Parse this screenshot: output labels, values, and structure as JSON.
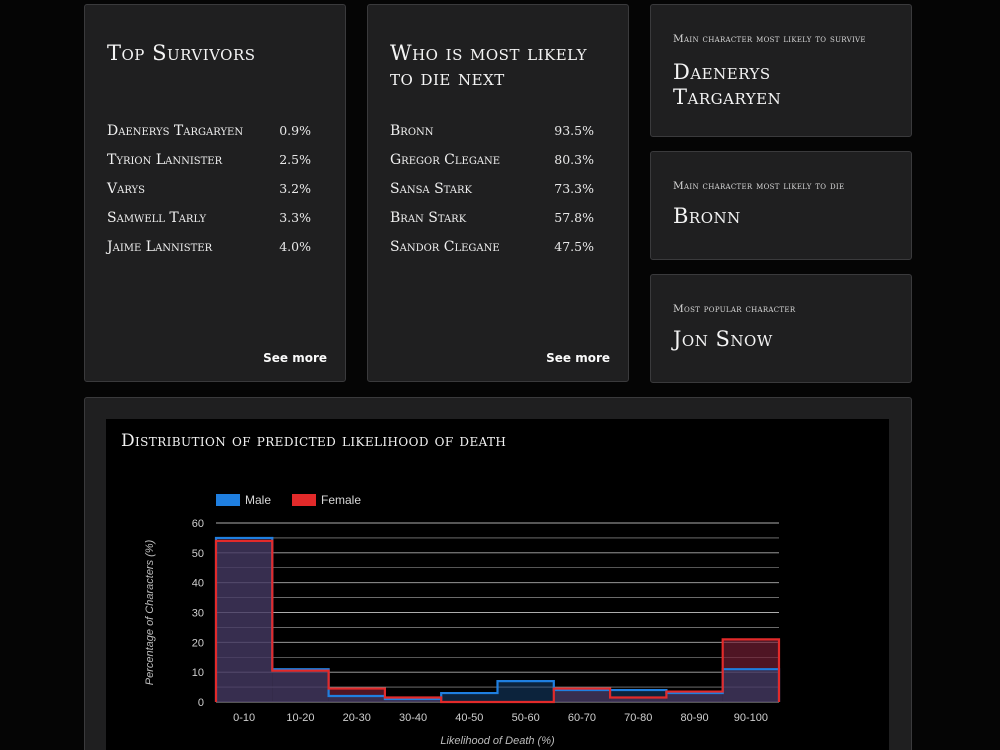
{
  "top_survivors": {
    "title": "Top Survivors",
    "items": [
      {
        "name": "Daenerys Targaryen",
        "pct": "0.9%"
      },
      {
        "name": "Tyrion Lannister",
        "pct": "2.5%"
      },
      {
        "name": "Varys",
        "pct": "3.2%"
      },
      {
        "name": "Samwell Tarly",
        "pct": "3.3%"
      },
      {
        "name": "Jaime Lannister",
        "pct": "4.0%"
      }
    ],
    "see_more": "See more"
  },
  "likely_to_die": {
    "title": "Who is most likely to die next",
    "items": [
      {
        "name": "Bronn",
        "pct": "93.5%"
      },
      {
        "name": "Gregor Clegane",
        "pct": "80.3%"
      },
      {
        "name": "Sansa Stark",
        "pct": "73.3%"
      },
      {
        "name": "Bran Stark",
        "pct": "57.8%"
      },
      {
        "name": "Sandor Clegane",
        "pct": "47.5%"
      }
    ],
    "see_more": "See more"
  },
  "facts": {
    "survive": {
      "label": "Main character most likely to survive",
      "value": "Daenerys Targaryen"
    },
    "die": {
      "label": "Main character most likely to die",
      "value": "Bronn"
    },
    "popular": {
      "label": "Most popular character",
      "value": "Jon Snow"
    }
  },
  "chart_title": "Distribution of predicted likelihood of death",
  "chart_data": {
    "type": "bar",
    "title": "Distribution of predicted likelihood of death",
    "xlabel": "Likelihood of Death (%)",
    "ylabel": "Percentage of Characters (%)",
    "categories": [
      "0-10",
      "10-20",
      "20-30",
      "30-40",
      "40-50",
      "50-60",
      "60-70",
      "70-80",
      "80-90",
      "90-100"
    ],
    "series": [
      {
        "name": "Male",
        "color": "#1f7fe0",
        "values": [
          55,
          11,
          2,
          1,
          3,
          7,
          4,
          4,
          3,
          11
        ]
      },
      {
        "name": "Female",
        "color": "#e22a2a",
        "values": [
          54,
          10.5,
          4.5,
          1.5,
          0,
          0,
          4.5,
          1.5,
          3.5,
          21
        ]
      }
    ],
    "ylim": [
      0,
      60
    ],
    "yticks": [
      0,
      10,
      20,
      30,
      40,
      50,
      60
    ],
    "grid": true,
    "legend": "top-left"
  }
}
